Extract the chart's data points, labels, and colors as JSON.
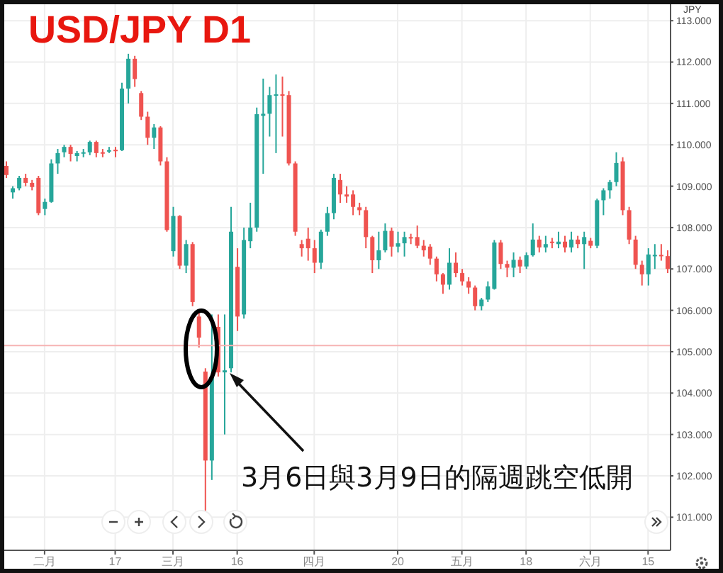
{
  "chart_data": {
    "type": "candlestick",
    "title": "USD/JPY D1",
    "ylabel": "JPY",
    "annotations": [
      "3月6日與3月9日的隔週跳空低開"
    ],
    "categories": [
      null,
      null,
      null,
      null,
      null,
      null,
      "二月",
      null,
      null,
      null,
      null,
      null,
      null,
      null,
      null,
      null,
      null,
      "17",
      null,
      null,
      null,
      null,
      null,
      null,
      null,
      null,
      "三月",
      null,
      null,
      null,
      null,
      null,
      null,
      null,
      null,
      null,
      "16",
      null,
      null,
      null,
      null,
      null,
      null,
      null,
      null,
      null,
      null,
      null,
      "四月",
      null,
      null,
      null,
      null,
      null,
      null,
      null,
      null,
      null,
      null,
      null,
      null,
      "20",
      null,
      null,
      null,
      null,
      null,
      null,
      null,
      null,
      null,
      "五月",
      null,
      null,
      null,
      null,
      null,
      null,
      null,
      null,
      null,
      "18",
      null,
      null,
      null,
      null,
      null,
      null,
      null,
      null,
      null,
      "六月",
      null,
      null,
      null,
      null,
      null,
      null,
      null,
      null,
      "15",
      null,
      null,
      null
    ],
    "ohlc": [
      [
        109.49,
        109.6,
        109.2,
        109.27
      ],
      [
        108.85,
        109.0,
        108.7,
        108.95
      ],
      [
        108.95,
        109.25,
        108.9,
        109.2
      ],
      [
        109.2,
        109.3,
        109.0,
        109.08
      ],
      [
        109.08,
        109.15,
        108.9,
        108.98
      ],
      [
        109.2,
        109.25,
        108.3,
        108.35
      ],
      [
        108.45,
        108.7,
        108.3,
        108.62
      ],
      [
        108.62,
        109.65,
        108.6,
        109.55
      ],
      [
        109.55,
        109.9,
        109.3,
        109.8
      ],
      [
        109.82,
        110.0,
        109.7,
        109.95
      ],
      [
        109.95,
        110.0,
        109.6,
        109.78
      ],
      [
        109.73,
        109.85,
        109.6,
        109.8
      ],
      [
        109.8,
        109.9,
        109.7,
        109.82
      ],
      [
        109.82,
        110.1,
        109.75,
        110.07
      ],
      [
        110.07,
        110.1,
        109.7,
        109.8
      ],
      [
        109.82,
        109.9,
        109.7,
        109.8
      ],
      [
        109.84,
        109.95,
        109.8,
        109.87
      ],
      [
        109.88,
        109.95,
        109.7,
        109.87
      ],
      [
        109.87,
        111.5,
        109.85,
        111.36
      ],
      [
        111.36,
        112.2,
        111.0,
        112.08
      ],
      [
        112.08,
        112.15,
        111.4,
        111.59
      ],
      [
        111.25,
        111.3,
        110.6,
        110.68
      ],
      [
        110.68,
        110.8,
        110.0,
        110.17
      ],
      [
        110.17,
        110.5,
        109.9,
        110.42
      ],
      [
        110.42,
        110.45,
        109.5,
        109.6
      ],
      [
        109.6,
        109.7,
        107.9,
        107.94
      ],
      [
        107.43,
        108.5,
        107.3,
        108.28
      ],
      [
        108.28,
        108.3,
        107.0,
        107.08
      ],
      [
        107.08,
        107.7,
        106.9,
        107.6
      ],
      [
        107.6,
        107.65,
        106.1,
        106.2
      ],
      [
        105.85,
        106.0,
        105.1,
        105.34
      ],
      [
        104.52,
        104.6,
        101.1,
        102.37
      ],
      [
        102.37,
        105.9,
        101.9,
        104.4
      ],
      [
        105.6,
        105.9,
        104.4,
        104.5
      ],
      [
        104.5,
        105.9,
        103.0,
        104.55
      ],
      [
        104.6,
        108.5,
        104.5,
        107.9
      ],
      [
        107.05,
        107.5,
        105.5,
        105.85
      ],
      [
        105.9,
        108.0,
        105.8,
        107.7
      ],
      [
        107.67,
        108.6,
        107.5,
        108.0
      ],
      [
        108.0,
        110.9,
        107.9,
        110.74
      ],
      [
        110.7,
        111.6,
        109.3,
        110.75
      ],
      [
        110.75,
        111.4,
        110.2,
        111.2
      ],
      [
        111.2,
        111.7,
        109.8,
        111.22
      ],
      [
        111.22,
        111.65,
        110.2,
        111.2
      ],
      [
        111.2,
        111.3,
        109.5,
        109.55
      ],
      [
        109.55,
        109.6,
        107.8,
        107.9
      ],
      [
        107.6,
        107.7,
        107.3,
        107.5
      ],
      [
        107.73,
        108.0,
        107.2,
        107.5
      ],
      [
        107.5,
        107.7,
        106.9,
        107.15
      ],
      [
        107.15,
        107.95,
        107.0,
        107.9
      ],
      [
        107.9,
        108.5,
        107.8,
        108.35
      ],
      [
        108.35,
        109.3,
        108.2,
        109.2
      ],
      [
        109.15,
        109.3,
        108.6,
        108.8
      ],
      [
        108.8,
        109.0,
        108.6,
        108.75
      ],
      [
        108.8,
        108.9,
        108.3,
        108.5
      ],
      [
        108.49,
        108.6,
        108.3,
        108.42
      ],
      [
        108.42,
        108.5,
        107.5,
        107.77
      ],
      [
        107.77,
        107.8,
        106.9,
        107.21
      ],
      [
        107.21,
        107.9,
        107.0,
        107.45
      ],
      [
        107.45,
        108.1,
        107.4,
        107.92
      ],
      [
        107.92,
        108.0,
        107.3,
        107.54
      ],
      [
        107.54,
        107.9,
        107.4,
        107.62
      ],
      [
        107.62,
        107.9,
        107.3,
        107.77
      ],
      [
        107.77,
        107.85,
        107.6,
        107.75
      ],
      [
        107.77,
        108.05,
        107.5,
        107.56
      ],
      [
        107.56,
        107.7,
        107.3,
        107.45
      ],
      [
        107.54,
        107.6,
        107.1,
        107.25
      ],
      [
        107.25,
        107.3,
        106.7,
        106.87
      ],
      [
        106.87,
        106.9,
        106.4,
        106.62
      ],
      [
        106.62,
        107.5,
        106.5,
        107.15
      ],
      [
        107.15,
        107.4,
        106.8,
        106.9
      ],
      [
        106.9,
        107.0,
        106.6,
        106.7
      ],
      [
        106.7,
        106.8,
        106.4,
        106.55
      ],
      [
        106.55,
        106.6,
        106.0,
        106.1
      ],
      [
        106.1,
        106.3,
        106.0,
        106.26
      ],
      [
        106.26,
        106.7,
        106.2,
        106.58
      ],
      [
        106.52,
        107.7,
        106.5,
        107.64
      ],
      [
        107.64,
        107.7,
        107.0,
        107.12
      ],
      [
        107.12,
        107.2,
        106.8,
        107.03
      ],
      [
        107.03,
        107.4,
        106.8,
        107.22
      ],
      [
        107.22,
        107.3,
        106.9,
        107.06
      ],
      [
        107.06,
        107.4,
        107.0,
        107.33
      ],
      [
        107.33,
        108.1,
        107.3,
        107.71
      ],
      [
        107.71,
        107.8,
        107.4,
        107.52
      ],
      [
        107.52,
        107.8,
        107.4,
        107.6
      ],
      [
        107.66,
        107.75,
        107.5,
        107.65
      ],
      [
        107.6,
        107.9,
        107.5,
        107.66
      ],
      [
        107.66,
        107.8,
        107.4,
        107.52
      ],
      [
        107.52,
        107.9,
        107.4,
        107.71
      ],
      [
        107.71,
        107.8,
        107.5,
        107.6
      ],
      [
        107.6,
        107.9,
        107.0,
        107.77
      ],
      [
        107.68,
        107.75,
        107.5,
        107.56
      ],
      [
        107.56,
        108.7,
        107.5,
        108.66
      ],
      [
        108.66,
        108.95,
        108.3,
        108.9
      ],
      [
        108.9,
        109.15,
        108.7,
        109.1
      ],
      [
        109.1,
        109.82,
        109.0,
        109.56
      ],
      [
        109.6,
        109.7,
        108.3,
        108.42
      ],
      [
        108.42,
        108.5,
        107.6,
        107.71
      ],
      [
        107.71,
        107.8,
        107.0,
        107.1
      ],
      [
        107.1,
        107.2,
        106.6,
        106.87
      ],
      [
        106.87,
        107.5,
        106.6,
        107.35
      ],
      [
        107.33,
        107.6,
        107.0,
        107.34
      ],
      [
        107.34,
        107.6,
        107.2,
        107.32
      ],
      [
        107.31,
        107.45,
        106.9,
        107.0
      ]
    ],
    "ylim": [
      100.2,
      113.5
    ],
    "yticks": [
      {
        "value": 101,
        "label": "101.000"
      },
      {
        "value": 102,
        "label": "102.000"
      },
      {
        "value": 103,
        "label": "103.000"
      },
      {
        "value": 104,
        "label": "104.000"
      },
      {
        "value": 105,
        "label": "105.000"
      },
      {
        "value": 106,
        "label": "106.000"
      },
      {
        "value": 107,
        "label": "107.000"
      },
      {
        "value": 108,
        "label": "108.000"
      },
      {
        "value": 109,
        "label": "109.000"
      },
      {
        "value": 110,
        "label": "110.000"
      },
      {
        "value": 111,
        "label": "111.000"
      },
      {
        "value": 112,
        "label": "112.000"
      },
      {
        "value": 113,
        "label": "113.000"
      }
    ],
    "ref_lines": [
      {
        "axis": "y",
        "value": 105.15,
        "color": "#f6b3b3"
      }
    ],
    "grid": true
  }
}
